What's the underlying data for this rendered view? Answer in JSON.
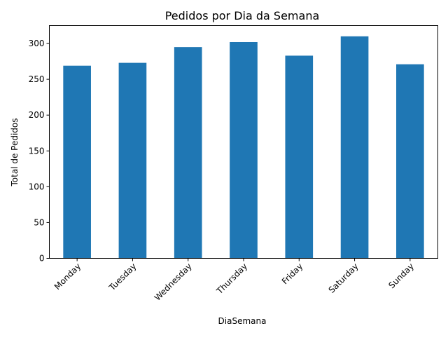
{
  "chart_data": {
    "type": "bar",
    "title": "Pedidos por Dia da Semana",
    "xlabel": "DiaSemana",
    "ylabel": "Total de Pedidos",
    "categories": [
      "Monday",
      "Tuesday",
      "Wednesday",
      "Thursday",
      "Friday",
      "Saturday",
      "Sunday"
    ],
    "values": [
      269,
      273,
      295,
      302,
      283,
      310,
      271
    ],
    "ylim": [
      0,
      325
    ],
    "yticks": [
      0,
      50,
      100,
      150,
      200,
      250,
      300
    ],
    "bar_color": "#1f77b4",
    "grid": false,
    "legend": "none"
  }
}
